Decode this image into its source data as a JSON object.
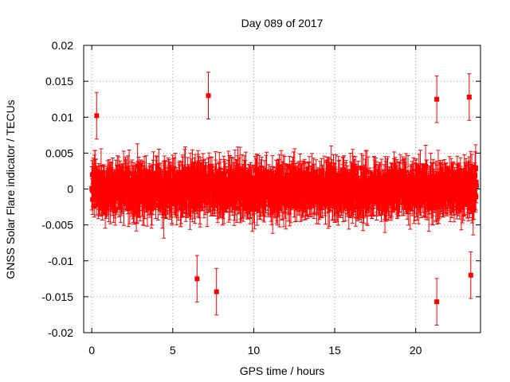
{
  "chart_data": {
    "type": "scatter",
    "title": "Day 089 of 2017",
    "xlabel": "GPS time / hours",
    "ylabel": "GNSS Solar Flare indicator / TECUs",
    "xlim": [
      -0.5,
      24
    ],
    "ylim": [
      -0.02,
      0.02
    ],
    "xticks": [
      "0",
      "5",
      "10",
      "15",
      "20"
    ],
    "xtick_values": [
      0,
      5,
      10,
      15,
      20
    ],
    "yticks": [
      "-0.02",
      "-0.015",
      "-0.01",
      "-0.005",
      "0",
      "0.005",
      "0.01",
      "0.015",
      "0.02"
    ],
    "ytick_values": [
      -0.02,
      -0.015,
      -0.01,
      -0.005,
      0,
      0.005,
      0.01,
      0.015,
      0.02
    ],
    "grid": true,
    "series": [
      {
        "color": "#ff0000",
        "marker": "square",
        "error_bars": true,
        "x_start": 0,
        "x_end": 23.75,
        "typical_spread": 0.0045,
        "typical_error": 0.0025,
        "notable_points": [
          {
            "x": 0.3,
            "y": 0.0102
          },
          {
            "x": 6.5,
            "y": -0.0125
          },
          {
            "x": 7.2,
            "y": 0.013
          },
          {
            "x": 7.7,
            "y": -0.0143
          },
          {
            "x": 21.3,
            "y": -0.0157
          },
          {
            "x": 21.3,
            "y": 0.0125
          },
          {
            "x": 23.3,
            "y": 0.0128
          },
          {
            "x": 23.4,
            "y": -0.012
          }
        ]
      }
    ]
  }
}
